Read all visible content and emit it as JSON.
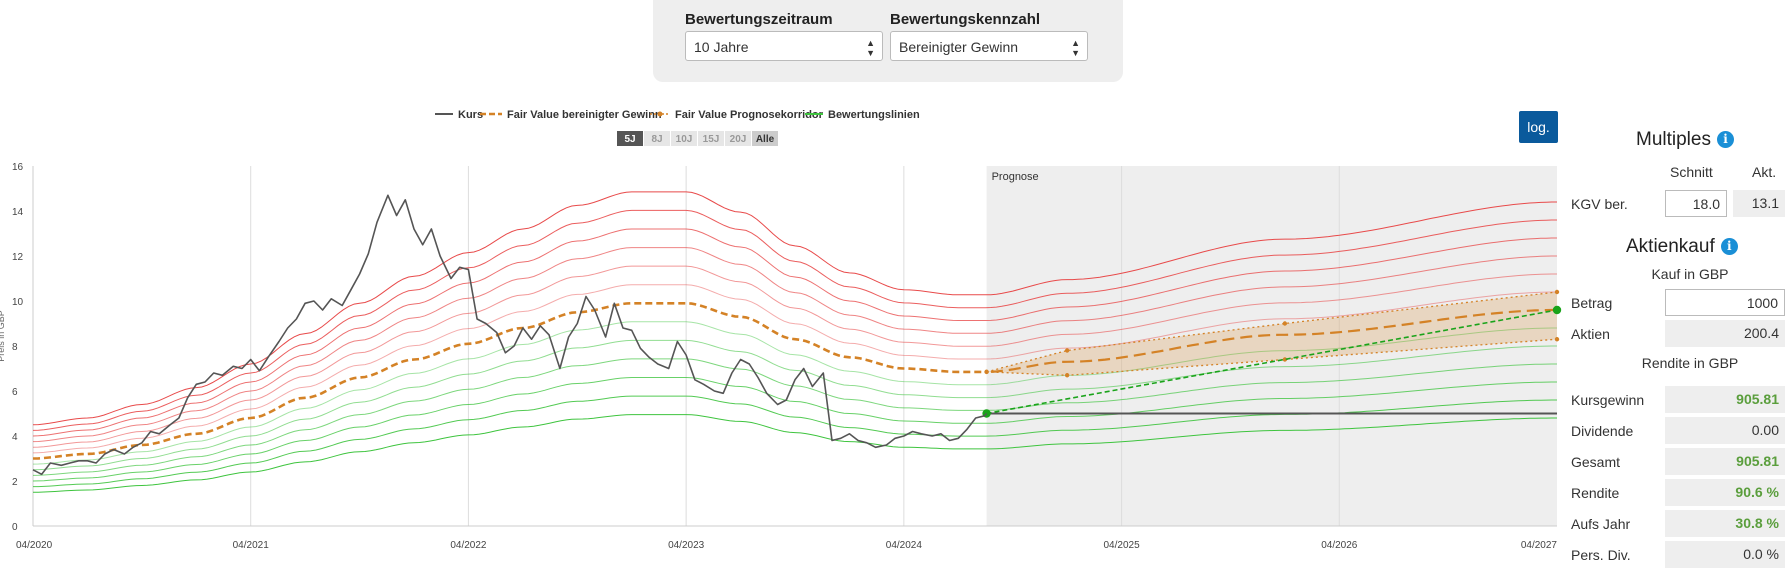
{
  "controls": {
    "period_label": "Bewertungszeitraum",
    "period_value": "10 Jahre",
    "metric_label": "Bewertungskennzahl",
    "metric_value": "Bereinigter Gewinn"
  },
  "legend": [
    "Kurs",
    "Fair Value bereinigter Gewinn",
    "Fair Value Prognosekorridor",
    "Bewertungslinien"
  ],
  "range_buttons": [
    "5J",
    "8J",
    "10J",
    "15J",
    "20J",
    "Alle"
  ],
  "range_active": "5J",
  "log_button": "log.",
  "prognose_label": "Prognose",
  "y_axis_label": "Preis in GBP",
  "colors": {
    "kurs": "#555555",
    "fair_value": "#d48226",
    "upper_lines": "#e84a4a",
    "lower_lines": "#3ec43e",
    "target": "#1aa31a",
    "forecast_bg": "#eeeeee",
    "accent": "#0a5a9c"
  },
  "chart_data": {
    "type": "line",
    "x_ticks": [
      "04/2020",
      "04/2021",
      "04/2022",
      "04/2023",
      "04/2024",
      "04/2025",
      "04/2026",
      "04/2027"
    ],
    "y_ticks": [
      0,
      2,
      4,
      6,
      8,
      10,
      12,
      14,
      16
    ],
    "ylim": [
      0,
      16
    ],
    "x_range_years": [
      2020.25,
      2027.25
    ],
    "forecast_start": 2024.63,
    "log_scale": false,
    "kurs": [
      [
        2020.25,
        2.5
      ],
      [
        2020.29,
        2.3
      ],
      [
        2020.33,
        2.8
      ],
      [
        2020.38,
        2.7
      ],
      [
        2020.42,
        2.8
      ],
      [
        2020.46,
        2.9
      ],
      [
        2020.5,
        2.9
      ],
      [
        2020.54,
        2.8
      ],
      [
        2020.58,
        3.2
      ],
      [
        2020.62,
        3.4
      ],
      [
        2020.67,
        3.2
      ],
      [
        2020.71,
        3.5
      ],
      [
        2020.75,
        3.7
      ],
      [
        2020.79,
        4.2
      ],
      [
        2020.83,
        4.1
      ],
      [
        2020.88,
        4.5
      ],
      [
        2020.92,
        4.8
      ],
      [
        2020.96,
        5.7
      ],
      [
        2021.0,
        6.3
      ],
      [
        2021.04,
        6.4
      ],
      [
        2021.08,
        6.8
      ],
      [
        2021.12,
        6.7
      ],
      [
        2021.17,
        7.1
      ],
      [
        2021.21,
        7.0
      ],
      [
        2021.25,
        7.4
      ],
      [
        2021.29,
        6.9
      ],
      [
        2021.33,
        7.5
      ],
      [
        2021.38,
        8.2
      ],
      [
        2021.42,
        8.8
      ],
      [
        2021.46,
        9.2
      ],
      [
        2021.5,
        9.9
      ],
      [
        2021.54,
        10.0
      ],
      [
        2021.58,
        9.6
      ],
      [
        2021.62,
        10.1
      ],
      [
        2021.67,
        9.8
      ],
      [
        2021.71,
        10.5
      ],
      [
        2021.75,
        11.2
      ],
      [
        2021.79,
        12.1
      ],
      [
        2021.83,
        13.5
      ],
      [
        2021.88,
        14.7
      ],
      [
        2021.92,
        13.8
      ],
      [
        2021.96,
        14.5
      ],
      [
        2022.0,
        13.2
      ],
      [
        2022.04,
        12.5
      ],
      [
        2022.08,
        13.2
      ],
      [
        2022.12,
        12.0
      ],
      [
        2022.17,
        11.0
      ],
      [
        2022.21,
        11.5
      ],
      [
        2022.25,
        11.4
      ],
      [
        2022.29,
        9.2
      ],
      [
        2022.33,
        9.0
      ],
      [
        2022.38,
        8.6
      ],
      [
        2022.42,
        7.7
      ],
      [
        2022.46,
        8.0
      ],
      [
        2022.5,
        8.8
      ],
      [
        2022.54,
        8.3
      ],
      [
        2022.58,
        8.9
      ],
      [
        2022.62,
        8.5
      ],
      [
        2022.67,
        7.0
      ],
      [
        2022.71,
        8.4
      ],
      [
        2022.75,
        9.0
      ],
      [
        2022.79,
        10.2
      ],
      [
        2022.83,
        9.6
      ],
      [
        2022.88,
        8.4
      ],
      [
        2022.92,
        9.9
      ],
      [
        2022.96,
        8.8
      ],
      [
        2023.0,
        8.7
      ],
      [
        2023.04,
        7.9
      ],
      [
        2023.08,
        7.5
      ],
      [
        2023.12,
        7.2
      ],
      [
        2023.17,
        7.0
      ],
      [
        2023.21,
        8.2
      ],
      [
        2023.25,
        7.6
      ],
      [
        2023.29,
        6.5
      ],
      [
        2023.33,
        6.3
      ],
      [
        2023.38,
        6.0
      ],
      [
        2023.42,
        5.9
      ],
      [
        2023.46,
        6.8
      ],
      [
        2023.5,
        7.4
      ],
      [
        2023.54,
        7.2
      ],
      [
        2023.58,
        6.6
      ],
      [
        2023.62,
        5.9
      ],
      [
        2023.67,
        5.4
      ],
      [
        2023.71,
        5.6
      ],
      [
        2023.75,
        6.5
      ],
      [
        2023.79,
        7.0
      ],
      [
        2023.83,
        6.2
      ],
      [
        2023.88,
        6.8
      ],
      [
        2023.92,
        3.8
      ],
      [
        2023.96,
        3.9
      ],
      [
        2024.0,
        4.1
      ],
      [
        2024.04,
        3.8
      ],
      [
        2024.08,
        3.7
      ],
      [
        2024.12,
        3.5
      ],
      [
        2024.17,
        3.6
      ],
      [
        2024.21,
        3.9
      ],
      [
        2024.25,
        4.0
      ],
      [
        2024.29,
        4.2
      ],
      [
        2024.33,
        4.1
      ],
      [
        2024.38,
        4.0
      ],
      [
        2024.42,
        4.1
      ],
      [
        2024.46,
        3.8
      ],
      [
        2024.5,
        3.9
      ],
      [
        2024.54,
        4.3
      ],
      [
        2024.58,
        4.8
      ],
      [
        2024.62,
        4.9
      ],
      [
        2024.63,
        5.0
      ]
    ],
    "fair_value": [
      [
        2020.25,
        3.0
      ],
      [
        2020.5,
        3.2
      ],
      [
        2020.75,
        3.6
      ],
      [
        2021.0,
        4.1
      ],
      [
        2021.25,
        4.8
      ],
      [
        2021.5,
        5.7
      ],
      [
        2021.75,
        6.6
      ],
      [
        2022.0,
        7.4
      ],
      [
        2022.25,
        8.1
      ],
      [
        2022.5,
        8.8
      ],
      [
        2022.75,
        9.5
      ],
      [
        2023.0,
        9.9
      ],
      [
        2023.25,
        9.9
      ],
      [
        2023.5,
        9.3
      ],
      [
        2023.75,
        8.3
      ],
      [
        2024.0,
        7.5
      ],
      [
        2024.25,
        7.0
      ],
      [
        2024.5,
        6.85
      ],
      [
        2024.63,
        6.85
      ],
      [
        2025.0,
        7.3
      ],
      [
        2026.0,
        8.5
      ],
      [
        2027.25,
        9.6
      ]
    ],
    "corridor_upper": [
      [
        2024.63,
        6.85
      ],
      [
        2025.0,
        7.8
      ],
      [
        2026.0,
        9.0
      ],
      [
        2027.25,
        10.4
      ]
    ],
    "corridor_lower": [
      [
        2024.63,
        6.85
      ],
      [
        2025.0,
        6.7
      ],
      [
        2026.0,
        7.4
      ],
      [
        2027.25,
        8.3
      ]
    ],
    "valuation_multipliers": [
      0.5,
      0.5833,
      0.6667,
      0.75,
      0.8333,
      0.9167,
      1.0833,
      1.1667,
      1.25,
      1.3333,
      1.4167,
      1.5
    ],
    "price_flat": [
      [
        2024.63,
        5.0
      ],
      [
        2027.25,
        5.0
      ]
    ],
    "target_line": [
      [
        2024.63,
        5.0
      ],
      [
        2027.25,
        9.6
      ]
    ]
  },
  "panel": {
    "multiples_title": "Multiples",
    "col_schnitt": "Schnitt",
    "col_akt": "Akt.",
    "kgv_label": "KGV ber.",
    "kgv_schnitt": "18.0",
    "kgv_akt": "13.1",
    "aktienkauf_title": "Aktienkauf",
    "kauf_sub": "Kauf in GBP",
    "betrag_label": "Betrag",
    "betrag_value": "1000",
    "aktien_label": "Aktien",
    "aktien_value": "200.4",
    "rendite_sub": "Rendite in GBP",
    "rows": [
      {
        "label": "Kursgewinn",
        "value": "905.81",
        "green": true
      },
      {
        "label": "Dividende",
        "value": "0.00",
        "green": false
      },
      {
        "label": "Gesamt",
        "value": "905.81",
        "green": true
      },
      {
        "label": "Rendite",
        "value": "90.6 %",
        "green": true
      },
      {
        "label": "Aufs Jahr",
        "value": "30.8 %",
        "green": true
      },
      {
        "label": "Pers. Div.",
        "value": "0.0 %",
        "green": false
      }
    ]
  }
}
